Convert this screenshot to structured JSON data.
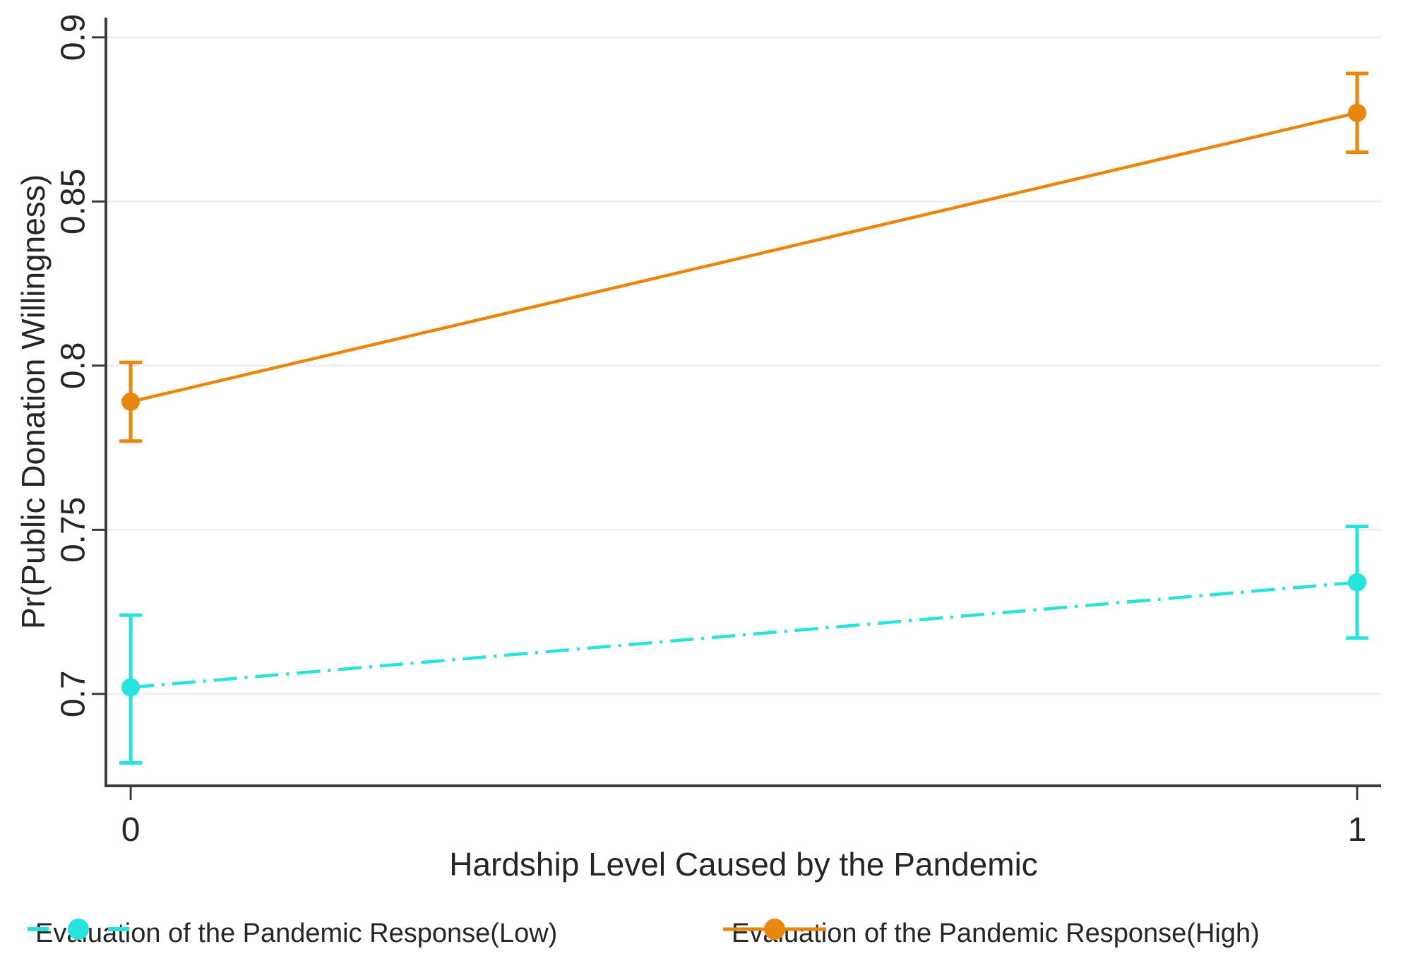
{
  "figure": {
    "background": "#FFFFFF",
    "axis_color": "#3C3C3C",
    "grid_color": "#F0F0F0",
    "text_color": "#262626"
  },
  "chart_data": {
    "type": "line",
    "title": "",
    "xlabel": "Hardship Level Caused by the Pandemic",
    "ylabel": "Pr(Public Donation Willingness)",
    "x_ticks": [
      0,
      1
    ],
    "x_tick_labels": [
      "0",
      "1"
    ],
    "y_ticks": [
      0.7,
      0.75,
      0.8,
      0.85,
      0.9
    ],
    "y_tick_labels": [
      "0.7",
      "0.75",
      "0.8",
      "0.85",
      "0.9"
    ],
    "xlim": [
      -0.0202,
      1.0196
    ],
    "ylim": [
      0.672,
      0.906
    ],
    "grid": "horizontal",
    "legend_position": "bottom",
    "series": [
      {
        "name": "Evaluation of the Pandemic Response(Low)",
        "color": "#26E3DC",
        "line_style": "dash-dot",
        "x": [
          0,
          1
        ],
        "y": [
          0.702,
          0.734
        ],
        "ci_low": [
          0.679,
          0.717
        ],
        "ci_high": [
          0.724,
          0.751
        ]
      },
      {
        "name": "Evaluation of the Pandemic Response(High)",
        "color": "#E8860D",
        "line_style": "solid",
        "x": [
          0,
          1
        ],
        "y": [
          0.789,
          0.877
        ],
        "ci_low": [
          0.777,
          0.865
        ],
        "ci_high": [
          0.801,
          0.889
        ]
      }
    ]
  }
}
